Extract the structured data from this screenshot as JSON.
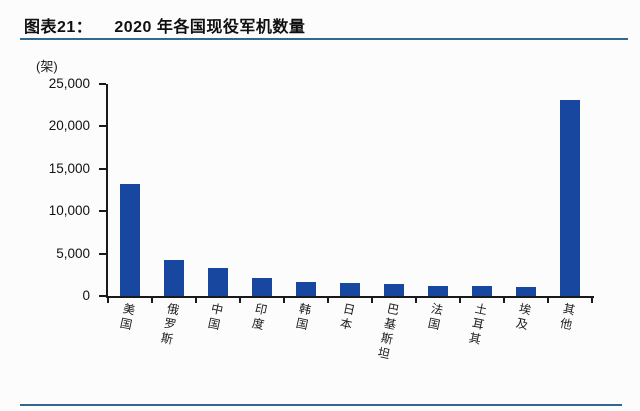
{
  "figure": {
    "label": "图表21：",
    "title": "2020 年各国现役军机数量",
    "unit_label": "(架)",
    "accent_color": "#33688E"
  },
  "chart_data": {
    "type": "bar",
    "title": "2020 年各国现役军机数量",
    "unit": "架",
    "categories": [
      "美国",
      "俄罗斯",
      "中国",
      "印度",
      "韩国",
      "日本",
      "巴基斯坦",
      "法国",
      "土耳其",
      "埃及",
      "其他"
    ],
    "category_slugs": [
      "usa",
      "russia",
      "china",
      "india",
      "south-korea",
      "japan",
      "pakistan",
      "france",
      "turkey",
      "egypt",
      "others"
    ],
    "values": [
      13200,
      4200,
      3300,
      2100,
      1700,
      1550,
      1400,
      1200,
      1150,
      1100,
      23100
    ],
    "xlabel": "",
    "ylabel": "(架)",
    "ylim": [
      0,
      25000
    ],
    "yticks": [
      0,
      5000,
      10000,
      15000,
      20000,
      25000
    ],
    "ytick_labels": [
      "0",
      "5,000",
      "10,000",
      "15,000",
      "20,000",
      "25,000"
    ],
    "bar_color": "#17479E",
    "axis_color": "#1A1A1A",
    "grid": false,
    "legend": "none"
  }
}
